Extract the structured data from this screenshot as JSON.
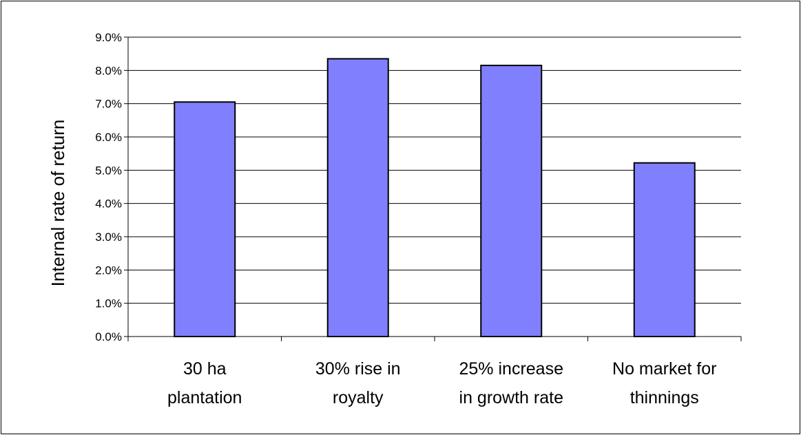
{
  "chart_data": {
    "type": "bar",
    "title": "",
    "xlabel": "",
    "ylabel": "Internal rate of return",
    "categories": [
      [
        "30 ha",
        "plantation"
      ],
      [
        "30% rise in",
        "royalty"
      ],
      [
        "25% increase",
        "in growth rate"
      ],
      [
        "No market for",
        "thinnings"
      ]
    ],
    "values": [
      7.05,
      8.35,
      8.15,
      5.22
    ],
    "ylim": [
      0,
      9
    ],
    "yticks": [
      "0.0%",
      "1.0%",
      "2.0%",
      "3.0%",
      "4.0%",
      "5.0%",
      "6.0%",
      "7.0%",
      "8.0%",
      "9.0%"
    ],
    "grid": true,
    "legend": "none",
    "colors": {
      "bar_fill": "#8080ff",
      "bar_stroke": "#000000",
      "grid": "#000000",
      "background": "#ffffff"
    }
  }
}
